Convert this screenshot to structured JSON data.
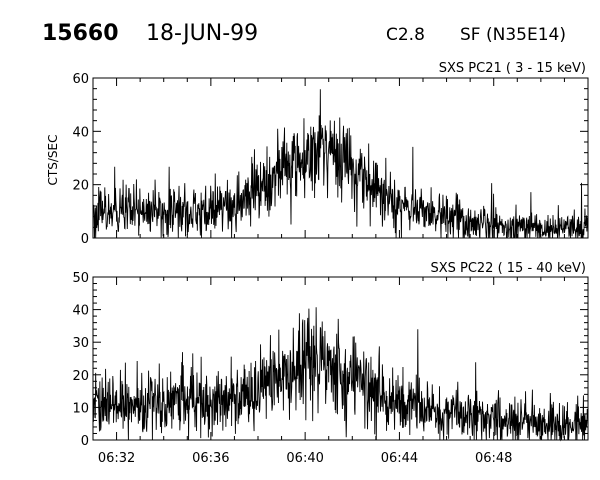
{
  "header": {
    "event_number": "15660",
    "date": "18-JUN-99",
    "flare_class": "C2.8",
    "flare_location": "SF (N35E14)"
  },
  "chart_data": [
    {
      "type": "line",
      "title": "SXS PC21 ( 3 - 15 keV)",
      "xlabel": "",
      "ylabel": "CTS/SEC",
      "xlim": [
        "06:31",
        "06:52"
      ],
      "ylim": [
        0,
        60
      ],
      "yticks": [
        "0",
        "20",
        "40",
        "60"
      ],
      "xticks": [
        "06:32",
        "06:36",
        "06:40",
        "06:44",
        "06:48"
      ],
      "x_tick_labels_shown": false,
      "series": [
        {
          "x": [
            "06:31",
            "06:32",
            "06:34",
            "06:36",
            "06:37",
            "06:38",
            "06:39",
            "06:40",
            "06:41",
            "06:42",
            "06:43",
            "06:44",
            "06:45",
            "06:46",
            "06:47",
            "06:48",
            "06:50",
            "06:52"
          ],
          "values": [
            9,
            9,
            10,
            10,
            12,
            18,
            25,
            31,
            34,
            27,
            18,
            13,
            10,
            8,
            6,
            5,
            4,
            4
          ]
        }
      ]
    },
    {
      "type": "line",
      "title": "SXS PC22 ( 15 - 40 keV)",
      "xlabel": "",
      "ylabel": "",
      "xlim": [
        "06:31",
        "06:52"
      ],
      "ylim": [
        0,
        50
      ],
      "yticks": [
        "0",
        "10",
        "20",
        "30",
        "40",
        "50"
      ],
      "xticks": [
        "06:32",
        "06:36",
        "06:40",
        "06:44",
        "06:48"
      ],
      "x_tick_labels_shown": true,
      "series": [
        {
          "x": [
            "06:31",
            "06:32",
            "06:34",
            "06:36",
            "06:37",
            "06:38",
            "06:39",
            "06:40",
            "06:41",
            "06:42",
            "06:43",
            "06:44",
            "06:45",
            "06:46",
            "06:47",
            "06:48",
            "06:50",
            "06:52"
          ],
          "values": [
            11,
            11,
            12,
            12,
            13,
            16,
            20,
            23,
            23,
            19,
            15,
            12,
            10,
            8,
            7,
            6,
            5,
            5
          ]
        }
      ]
    }
  ]
}
